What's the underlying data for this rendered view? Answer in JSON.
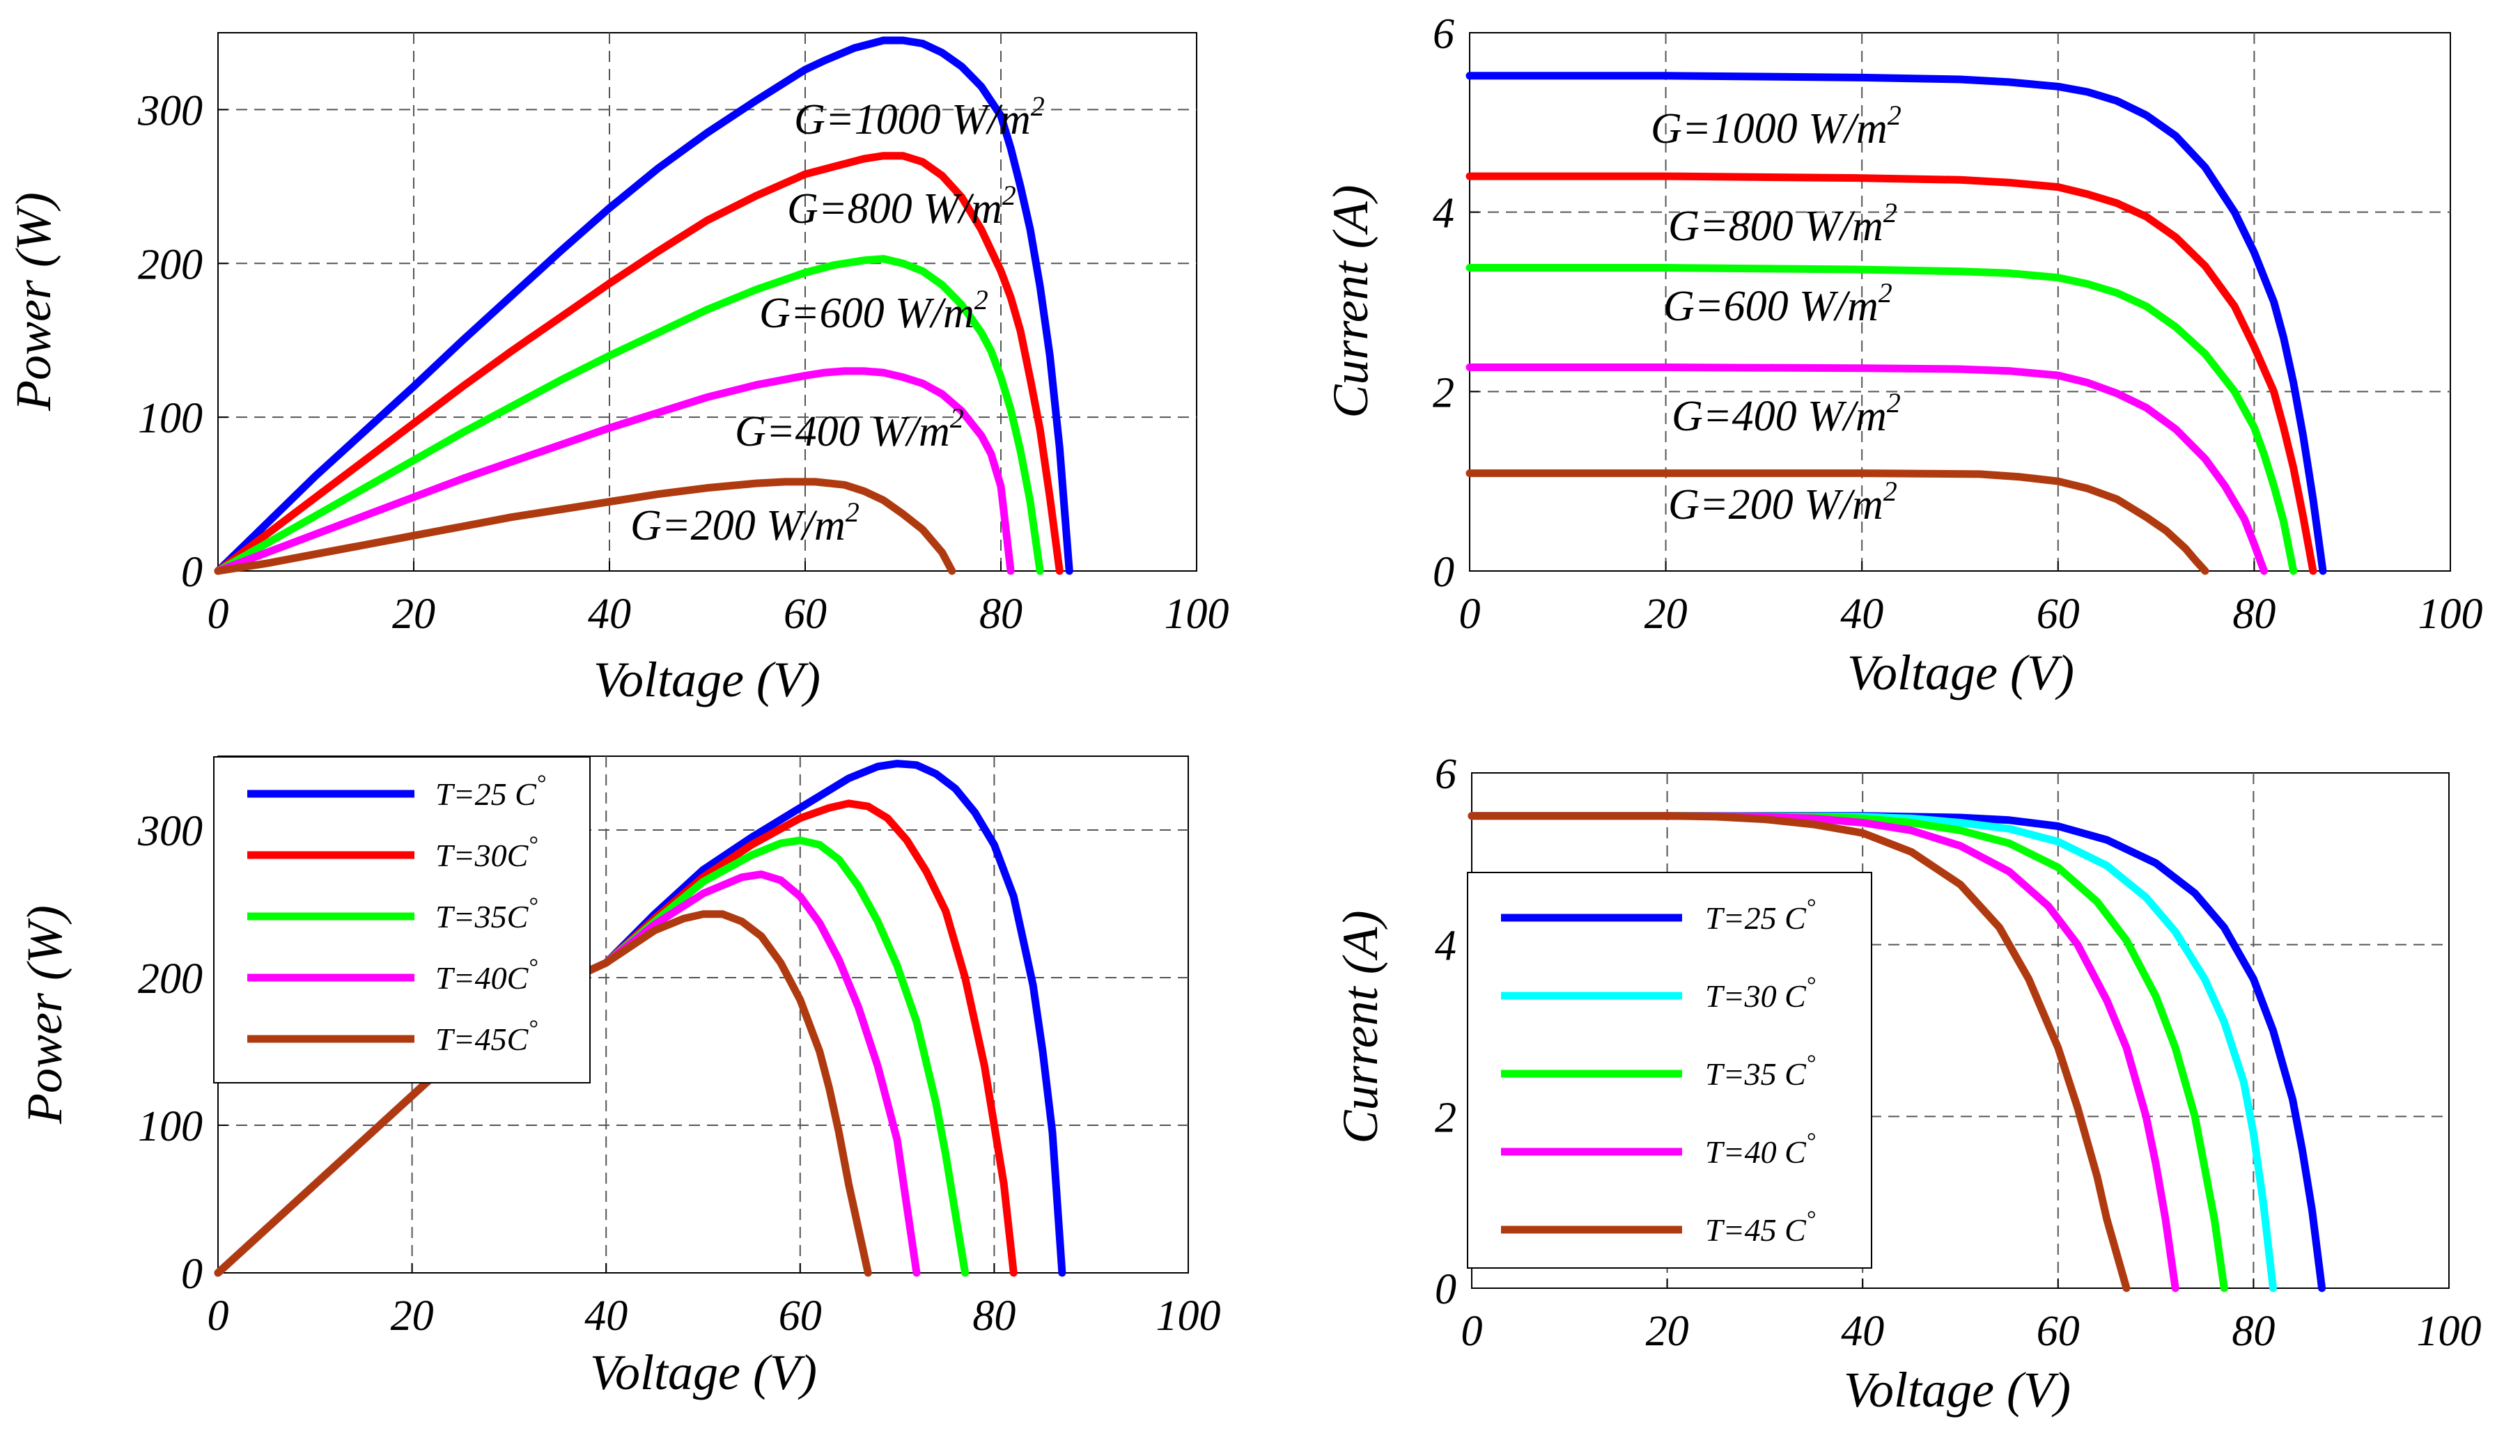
{
  "chart_data": [
    {
      "id": "power-irradiance",
      "type": "line",
      "xlabel": "Voltage (V)",
      "ylabel": "Power (W)",
      "xlim": [
        0,
        100
      ],
      "ylim": [
        0,
        350
      ],
      "xticks": [
        0,
        20,
        40,
        60,
        80,
        100
      ],
      "yticks": [
        0,
        100,
        200,
        300
      ],
      "grid": true,
      "legend": "none",
      "series": [
        {
          "name": "G=1000 W/m2",
          "label": "G=1000 W/m",
          "sup": "2",
          "color": "#0000ff",
          "x": [
            0,
            5,
            10,
            15,
            20,
            25,
            30,
            35,
            40,
            45,
            50,
            55,
            60,
            62,
            65,
            68,
            70,
            72,
            74,
            76,
            78,
            80,
            81,
            82,
            83,
            84,
            85,
            86,
            87
          ],
          "y": [
            0,
            31,
            62,
            91,
            120,
            150,
            179,
            208,
            236,
            262,
            285,
            306,
            326,
            332,
            340,
            345,
            345,
            343,
            337,
            328,
            315,
            296,
            275,
            250,
            222,
            185,
            140,
            80,
            0
          ]
        },
        {
          "name": "G=800 W/m2",
          "label": "G=800 W/m",
          "sup": "2",
          "color": "#ff0000",
          "x": [
            0,
            5,
            10,
            15,
            20,
            25,
            30,
            35,
            40,
            45,
            50,
            55,
            60,
            63,
            66,
            68,
            70,
            72,
            74,
            76,
            78,
            80,
            81,
            82,
            83,
            84,
            85,
            86
          ],
          "y": [
            0,
            24,
            48,
            72,
            96,
            120,
            143,
            165,
            187,
            208,
            228,
            244,
            258,
            263,
            268,
            270,
            270,
            266,
            257,
            243,
            222,
            195,
            178,
            156,
            125,
            92,
            48,
            0
          ]
        },
        {
          "name": "G=600 W/m2",
          "label": "G=600 W/m",
          "sup": "2",
          "color": "#00ff00",
          "x": [
            0,
            5,
            10,
            15,
            20,
            25,
            30,
            35,
            40,
            45,
            50,
            55,
            60,
            63,
            66,
            68,
            70,
            72,
            74,
            76,
            78,
            79,
            80,
            81,
            82,
            83,
            84
          ],
          "y": [
            0,
            18,
            36,
            54,
            72,
            90,
            107,
            124,
            140,
            155,
            170,
            183,
            194,
            199,
            202,
            203,
            200,
            195,
            186,
            173,
            155,
            143,
            126,
            105,
            78,
            45,
            0
          ]
        },
        {
          "name": "G=400 W/m2",
          "label": "G=400 W/m",
          "sup": "2",
          "color": "#ff00ff",
          "x": [
            0,
            5,
            10,
            15,
            20,
            25,
            30,
            35,
            40,
            45,
            50,
            55,
            60,
            62,
            64,
            66,
            68,
            70,
            72,
            74,
            76,
            78,
            79,
            80,
            81
          ],
          "y": [
            0,
            12,
            24,
            36,
            48,
            60,
            71,
            82,
            93,
            103,
            113,
            121,
            127,
            129,
            130,
            130,
            129,
            126,
            122,
            115,
            104,
            88,
            76,
            55,
            0
          ]
        },
        {
          "name": "G=200 W/m2",
          "label": "G=200 W/m",
          "sup": "2",
          "color": "#b03a10",
          "x": [
            0,
            5,
            10,
            15,
            20,
            25,
            30,
            35,
            40,
            45,
            50,
            55,
            58,
            61,
            64,
            66,
            68,
            70,
            72,
            74,
            75
          ],
          "y": [
            0,
            5,
            11,
            17,
            23,
            29,
            35,
            40,
            45,
            50,
            54,
            57,
            58,
            58,
            56,
            52,
            46,
            37,
            27,
            12,
            0
          ]
        }
      ]
    },
    {
      "id": "current-irradiance",
      "type": "line",
      "xlabel": "Voltage (V)",
      "ylabel": "Current (A)",
      "xlim": [
        0,
        100
      ],
      "ylim": [
        0,
        6
      ],
      "xticks": [
        0,
        20,
        40,
        60,
        80,
        100
      ],
      "yticks": [
        0,
        2,
        4,
        6
      ],
      "grid": true,
      "legend": "none",
      "series": [
        {
          "name": "G=1000 W/m2",
          "label": "G=1000 W/m",
          "sup": "2",
          "color": "#0000ff",
          "x": [
            0,
            20,
            40,
            50,
            55,
            60,
            63,
            66,
            69,
            72,
            75,
            78,
            80,
            82,
            83,
            84,
            85,
            86,
            87
          ],
          "y": [
            5.52,
            5.52,
            5.5,
            5.48,
            5.45,
            5.4,
            5.34,
            5.24,
            5.08,
            4.85,
            4.5,
            4.0,
            3.55,
            3.0,
            2.6,
            2.1,
            1.5,
            0.8,
            0
          ]
        },
        {
          "name": "G=800 W/m2",
          "label": "G=800 W/m",
          "sup": "2",
          "color": "#ff0000",
          "x": [
            0,
            20,
            40,
            50,
            55,
            60,
            63,
            66,
            69,
            72,
            75,
            78,
            80,
            82,
            83,
            84,
            85,
            86
          ],
          "y": [
            4.4,
            4.4,
            4.38,
            4.36,
            4.33,
            4.28,
            4.2,
            4.1,
            3.95,
            3.72,
            3.4,
            2.95,
            2.5,
            2.0,
            1.6,
            1.15,
            0.6,
            0
          ]
        },
        {
          "name": "G=600 W/m2",
          "label": "G=600 W/m",
          "sup": "2",
          "color": "#00ff00",
          "x": [
            0,
            20,
            40,
            50,
            55,
            60,
            63,
            66,
            69,
            72,
            75,
            78,
            80,
            81,
            82,
            83,
            84
          ],
          "y": [
            3.38,
            3.38,
            3.36,
            3.34,
            3.32,
            3.27,
            3.2,
            3.1,
            2.95,
            2.72,
            2.42,
            2.0,
            1.6,
            1.3,
            0.95,
            0.55,
            0
          ]
        },
        {
          "name": "G=400 W/m2",
          "label": "G=400 W/m",
          "sup": "2",
          "color": "#ff00ff",
          "x": [
            0,
            20,
            40,
            50,
            55,
            60,
            63,
            66,
            69,
            72,
            75,
            77,
            79,
            80,
            81
          ],
          "y": [
            2.27,
            2.27,
            2.26,
            2.25,
            2.23,
            2.18,
            2.1,
            1.98,
            1.82,
            1.58,
            1.25,
            0.95,
            0.58,
            0.3,
            0
          ]
        },
        {
          "name": "G=200 W/m2",
          "label": "G=200 W/m",
          "sup": "2",
          "color": "#b03a10",
          "x": [
            0,
            20,
            40,
            52,
            56,
            60,
            63,
            66,
            69,
            71,
            73,
            74,
            75
          ],
          "y": [
            1.09,
            1.09,
            1.09,
            1.08,
            1.05,
            1.0,
            0.92,
            0.8,
            0.6,
            0.45,
            0.25,
            0.12,
            0
          ]
        }
      ]
    },
    {
      "id": "power-temperature",
      "type": "line",
      "xlabel": "Voltage (V)",
      "ylabel": "Power (W)",
      "xlim": [
        0,
        100
      ],
      "ylim": [
        0,
        350
      ],
      "xticks": [
        0,
        20,
        40,
        60,
        80,
        100
      ],
      "yticks": [
        0,
        100,
        200,
        300
      ],
      "grid": true,
      "legend": "top-left",
      "series": [
        {
          "name": "T=25 C°",
          "label": "T=25 C",
          "sup": "°",
          "color": "#0000ff",
          "x": [
            0,
            10,
            20,
            30,
            40,
            45,
            50,
            55,
            60,
            65,
            68,
            70,
            72,
            74,
            76,
            78,
            80,
            82,
            84,
            85,
            86,
            87
          ],
          "y": [
            0,
            60,
            120,
            180,
            210,
            243,
            273,
            295,
            315,
            335,
            343,
            345,
            344,
            338,
            328,
            312,
            290,
            255,
            195,
            150,
            95,
            0
          ]
        },
        {
          "name": "T=30C°",
          "label": "T=30C",
          "sup": "°",
          "color": "#ff0000",
          "x": [
            0,
            10,
            20,
            30,
            40,
            45,
            50,
            55,
            60,
            63,
            65,
            67,
            69,
            71,
            73,
            75,
            77,
            79,
            80,
            81,
            82
          ],
          "y": [
            0,
            60,
            120,
            180,
            210,
            240,
            268,
            290,
            308,
            315,
            318,
            316,
            308,
            293,
            272,
            245,
            200,
            140,
            100,
            60,
            0
          ]
        },
        {
          "name": "T=35C°",
          "label": "T=35C",
          "sup": "°",
          "color": "#00ff00",
          "x": [
            0,
            10,
            20,
            30,
            40,
            45,
            50,
            55,
            58,
            60,
            62,
            64,
            66,
            68,
            70,
            72,
            74,
            75,
            76,
            77
          ],
          "y": [
            0,
            60,
            120,
            180,
            210,
            238,
            265,
            283,
            291,
            293,
            290,
            280,
            262,
            238,
            208,
            170,
            115,
            80,
            40,
            0
          ]
        },
        {
          "name": "T=40C°",
          "label": "T=40C",
          "sup": "°",
          "color": "#ff00ff",
          "x": [
            0,
            10,
            20,
            30,
            40,
            45,
            50,
            54,
            56,
            58,
            60,
            62,
            64,
            66,
            68,
            70,
            71,
            72
          ],
          "y": [
            0,
            60,
            120,
            180,
            210,
            236,
            257,
            268,
            270,
            266,
            255,
            237,
            212,
            180,
            140,
            90,
            45,
            0
          ]
        },
        {
          "name": "T=45C°",
          "label": "T=45C",
          "sup": "°",
          "color": "#b03a10",
          "x": [
            0,
            10,
            20,
            30,
            40,
            45,
            48,
            50,
            52,
            54,
            56,
            58,
            60,
            62,
            63,
            64,
            65,
            66,
            67
          ],
          "y": [
            0,
            60,
            120,
            180,
            210,
            232,
            240,
            243,
            243,
            238,
            228,
            210,
            185,
            150,
            125,
            95,
            60,
            30,
            0
          ]
        }
      ]
    },
    {
      "id": "current-temperature",
      "type": "line",
      "xlabel": "Voltage (V)",
      "ylabel": "Current (A)",
      "xlim": [
        0,
        100
      ],
      "ylim": [
        0,
        6
      ],
      "xticks": [
        0,
        20,
        40,
        60,
        80,
        100
      ],
      "yticks": [
        0,
        2,
        4,
        6
      ],
      "grid": true,
      "legend": "left",
      "series": [
        {
          "name": "T=25 C°",
          "label": "T=25 C",
          "sup": "°",
          "color": "#0000ff",
          "x": [
            0,
            20,
            40,
            50,
            55,
            60,
            65,
            70,
            74,
            77,
            80,
            82,
            84,
            85,
            86,
            87
          ],
          "y": [
            5.5,
            5.5,
            5.5,
            5.48,
            5.45,
            5.38,
            5.22,
            4.95,
            4.6,
            4.2,
            3.6,
            3.0,
            2.2,
            1.6,
            0.9,
            0
          ]
        },
        {
          "name": "T=30 C°",
          "label": "T=30 C",
          "sup": "°",
          "color": "#00ffff",
          "x": [
            0,
            20,
            40,
            45,
            50,
            55,
            60,
            65,
            69,
            72,
            75,
            77,
            79,
            80,
            81,
            82
          ],
          "y": [
            5.5,
            5.5,
            5.49,
            5.47,
            5.42,
            5.35,
            5.2,
            4.92,
            4.55,
            4.15,
            3.6,
            3.1,
            2.4,
            1.8,
            1.0,
            0
          ]
        },
        {
          "name": "T=35 C°",
          "label": "T=35 C",
          "sup": "°",
          "color": "#00ff00",
          "x": [
            0,
            20,
            35,
            40,
            45,
            50,
            55,
            60,
            64,
            67,
            70,
            72,
            74,
            75,
            76,
            77
          ],
          "y": [
            5.5,
            5.5,
            5.49,
            5.47,
            5.42,
            5.33,
            5.18,
            4.9,
            4.5,
            4.05,
            3.4,
            2.8,
            2.0,
            1.4,
            0.8,
            0
          ]
        },
        {
          "name": "T=40 C°",
          "label": "T=40 C",
          "sup": "°",
          "color": "#ff00ff",
          "x": [
            0,
            20,
            30,
            35,
            40,
            45,
            50,
            55,
            59,
            62,
            65,
            67,
            69,
            70,
            71,
            72
          ],
          "y": [
            5.5,
            5.5,
            5.49,
            5.47,
            5.42,
            5.33,
            5.15,
            4.85,
            4.45,
            4.0,
            3.35,
            2.8,
            2.0,
            1.45,
            0.8,
            0
          ]
        },
        {
          "name": "T=45 C°",
          "label": "T=45 C",
          "sup": "°",
          "color": "#b03a10",
          "x": [
            0,
            20,
            25,
            30,
            35,
            40,
            45,
            50,
            54,
            57,
            60,
            62,
            64,
            65,
            66,
            67
          ],
          "y": [
            5.5,
            5.5,
            5.49,
            5.46,
            5.4,
            5.3,
            5.08,
            4.7,
            4.2,
            3.6,
            2.8,
            2.1,
            1.3,
            0.8,
            0.4,
            0
          ]
        }
      ]
    }
  ]
}
